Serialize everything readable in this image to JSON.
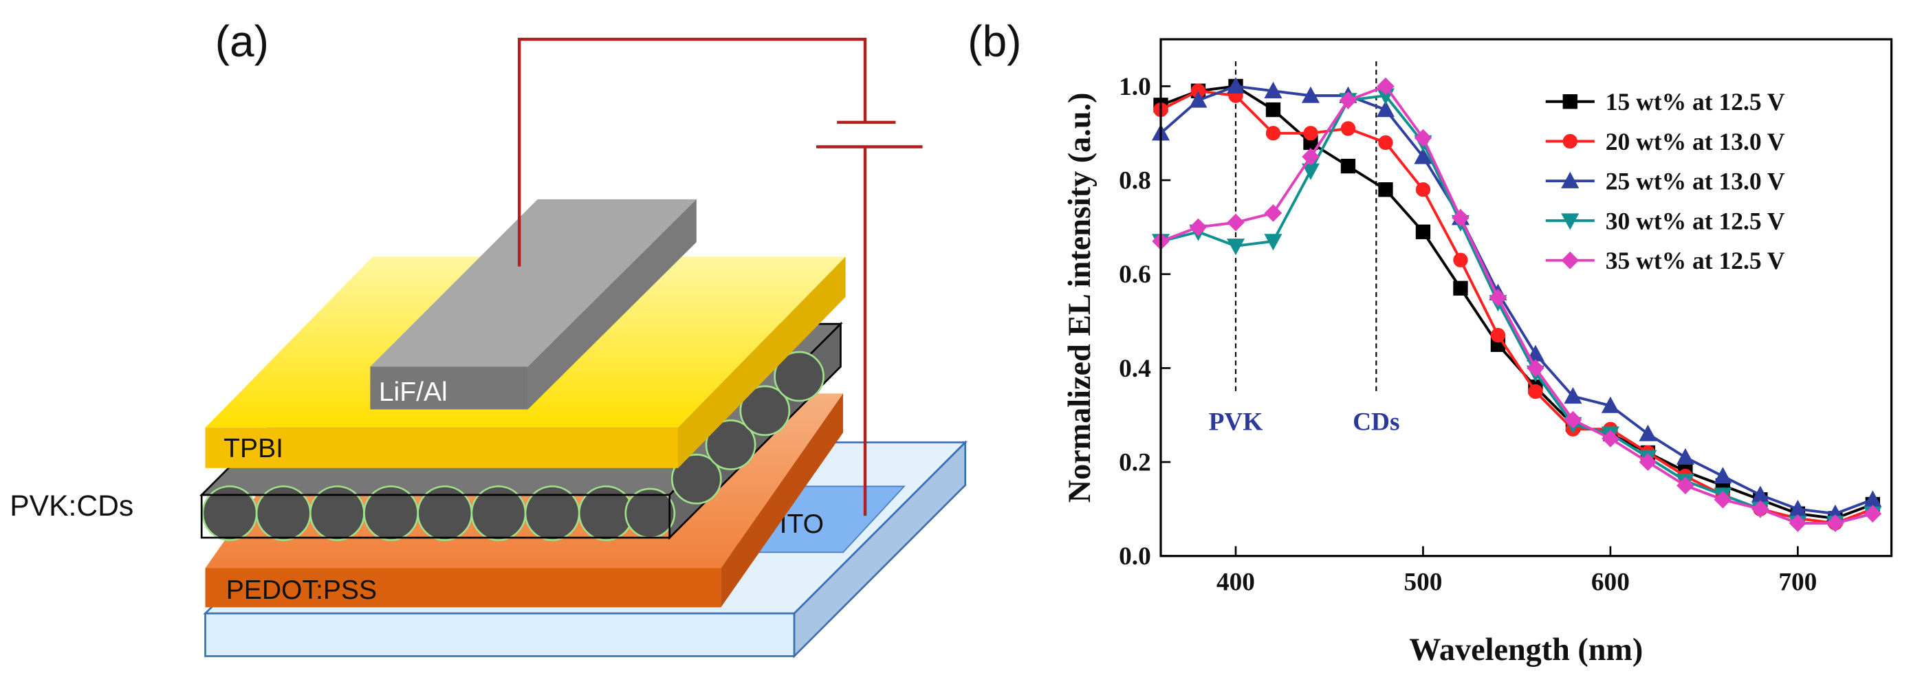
{
  "diagram": {
    "panel_label": "(a)",
    "labels": {
      "electrode": "LiF/Al",
      "etl": "TPBI",
      "emitter": "PVK:CDs",
      "anode": "ITO",
      "hil": "PEDOT:PSS"
    }
  },
  "chart_data": {
    "type": "line",
    "panel_label": "(b)",
    "x_label": "Wavelength (nm)",
    "y_label": "Normalized EL intensity (a.u.)",
    "x": [
      360,
      380,
      400,
      420,
      440,
      460,
      480,
      500,
      520,
      540,
      560,
      580,
      600,
      620,
      640,
      660,
      680,
      700,
      720,
      740
    ],
    "series": [
      {
        "name": "15 wt% at 12.5 V",
        "color": "#000000",
        "marker": "square",
        "values": [
          0.96,
          0.99,
          1.0,
          0.95,
          0.88,
          0.83,
          0.78,
          0.69,
          0.57,
          0.45,
          0.36,
          0.28,
          0.26,
          0.22,
          0.18,
          0.15,
          0.12,
          0.09,
          0.08,
          0.11
        ]
      },
      {
        "name": "20 wt% at 13.0 V",
        "color": "#ff2020",
        "marker": "circle",
        "values": [
          0.95,
          0.99,
          0.98,
          0.9,
          0.9,
          0.91,
          0.88,
          0.78,
          0.63,
          0.47,
          0.35,
          0.27,
          0.27,
          0.22,
          0.17,
          0.13,
          0.1,
          0.08,
          0.07,
          0.1
        ]
      },
      {
        "name": "25 wt% at 13.0 V",
        "color": "#3040a0",
        "marker": "triangle-up",
        "values": [
          0.9,
          0.97,
          1.0,
          0.99,
          0.98,
          0.98,
          0.95,
          0.85,
          0.72,
          0.56,
          0.43,
          0.34,
          0.32,
          0.26,
          0.21,
          0.17,
          0.13,
          0.1,
          0.09,
          0.12
        ]
      },
      {
        "name": "30 wt% at 12.5 V",
        "color": "#109090",
        "marker": "triangle-down",
        "values": [
          0.67,
          0.69,
          0.66,
          0.67,
          0.82,
          0.97,
          0.98,
          0.88,
          0.71,
          0.54,
          0.39,
          0.28,
          0.26,
          0.21,
          0.16,
          0.13,
          0.1,
          0.07,
          0.07,
          0.09
        ]
      },
      {
        "name": "35 wt% at 12.5 V",
        "color": "#e040c0",
        "marker": "diamond",
        "values": [
          0.67,
          0.7,
          0.71,
          0.73,
          0.85,
          0.97,
          1.0,
          0.89,
          0.72,
          0.55,
          0.4,
          0.29,
          0.25,
          0.2,
          0.15,
          0.12,
          0.1,
          0.07,
          0.07,
          0.09
        ]
      }
    ],
    "annotations": [
      {
        "text": "PVK",
        "x": 400
      },
      {
        "text": "CDs",
        "x": 475
      }
    ],
    "xlim": [
      360,
      750
    ],
    "xticks": [
      400,
      500,
      600,
      700
    ],
    "ylim": [
      0,
      1.1
    ],
    "yticks": [
      {
        "value": 0,
        "label": "0.0"
      },
      0.2,
      0.4,
      0.6,
      0.8,
      {
        "value": 1,
        "label": "1.0"
      }
    ],
    "legend": "upper right"
  }
}
